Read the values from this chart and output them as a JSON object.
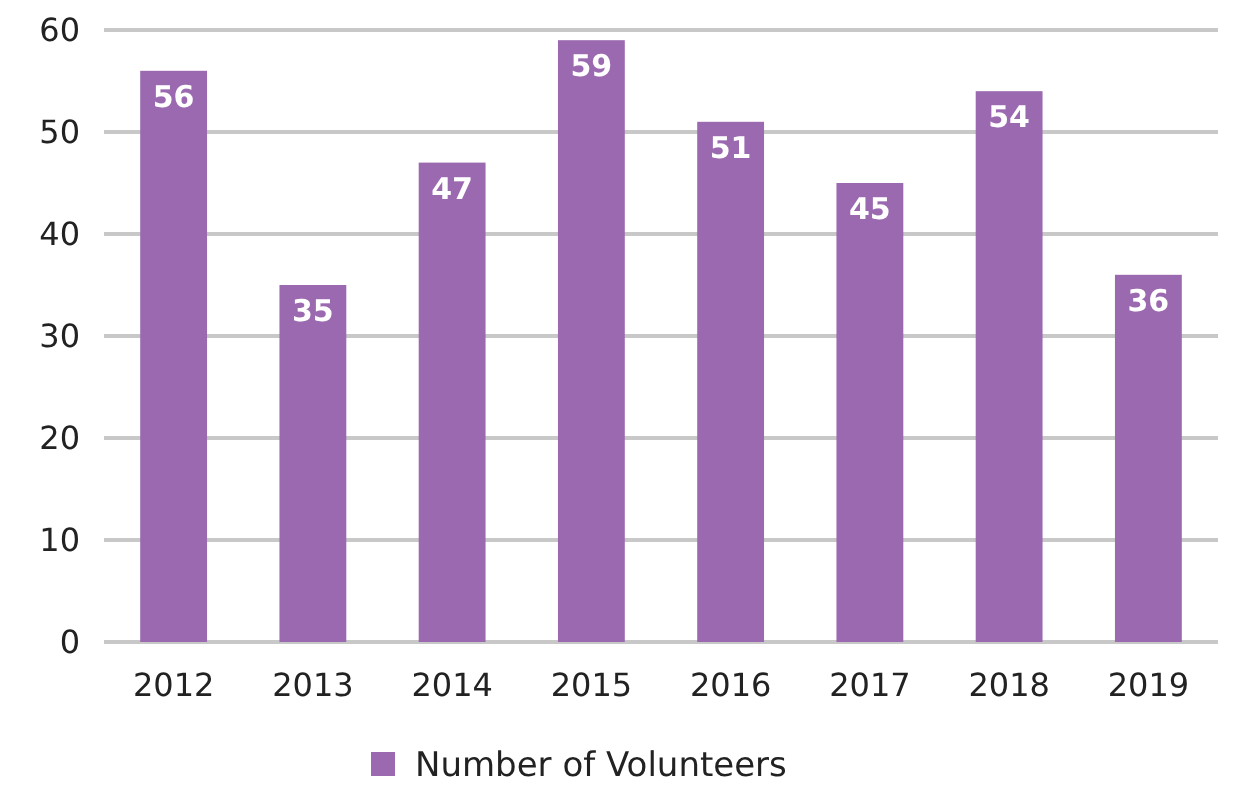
{
  "chart_data": {
    "type": "bar",
    "categories": [
      "2012",
      "2013",
      "2014",
      "2015",
      "2016",
      "2017",
      "2018",
      "2019"
    ],
    "series": [
      {
        "name": "Number of Volunteers",
        "color": "#9b69b0",
        "values": [
          56,
          35,
          47,
          59,
          51,
          45,
          54,
          36
        ]
      }
    ],
    "ylim": [
      0,
      60
    ],
    "yticks": [
      0,
      10,
      20,
      30,
      40,
      50,
      60
    ],
    "grid": "y",
    "legend": "bottom",
    "data_labels": true
  }
}
